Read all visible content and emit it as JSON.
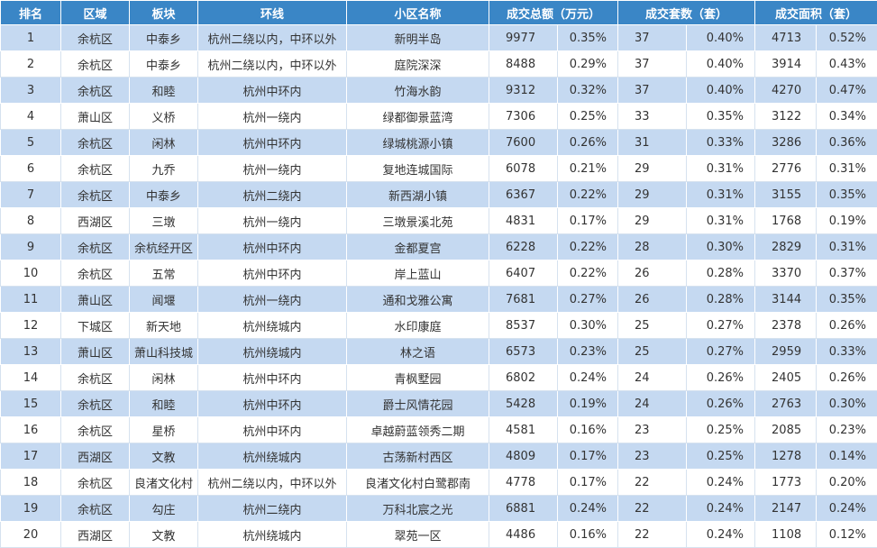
{
  "header": {
    "rank": "排名",
    "district": "区域",
    "block": "板块",
    "ring": "环线",
    "community": "小区名称",
    "amount": "成交总额（万元）",
    "sets": "成交套数（套）",
    "area": "成交面积（套）"
  },
  "rows": [
    {
      "rank": "1",
      "district": "余杭区",
      "block": "中泰乡",
      "ring": "杭州二绕以内，中环以外",
      "community": "新明半岛",
      "amount": "9977",
      "amount_pct": "0.35%",
      "sets": "37",
      "sets_pct": "0.40%",
      "area": "4713",
      "area_pct": "0.52%"
    },
    {
      "rank": "2",
      "district": "余杭区",
      "block": "中泰乡",
      "ring": "杭州二绕以内，中环以外",
      "community": "庭院深深",
      "amount": "8488",
      "amount_pct": "0.29%",
      "sets": "37",
      "sets_pct": "0.40%",
      "area": "3914",
      "area_pct": "0.43%"
    },
    {
      "rank": "3",
      "district": "余杭区",
      "block": "和睦",
      "ring": "杭州中环内",
      "community": "竹海水韵",
      "amount": "9312",
      "amount_pct": "0.32%",
      "sets": "37",
      "sets_pct": "0.40%",
      "area": "4270",
      "area_pct": "0.47%"
    },
    {
      "rank": "4",
      "district": "萧山区",
      "block": "义桥",
      "ring": "杭州一绕内",
      "community": "绿都御景蓝湾",
      "amount": "7306",
      "amount_pct": "0.25%",
      "sets": "33",
      "sets_pct": "0.35%",
      "area": "3122",
      "area_pct": "0.34%"
    },
    {
      "rank": "5",
      "district": "余杭区",
      "block": "闲林",
      "ring": "杭州中环内",
      "community": "绿城桃源小镇",
      "amount": "7600",
      "amount_pct": "0.26%",
      "sets": "31",
      "sets_pct": "0.33%",
      "area": "3286",
      "area_pct": "0.36%"
    },
    {
      "rank": "6",
      "district": "余杭区",
      "block": "九乔",
      "ring": "杭州一绕内",
      "community": "复地连城国际",
      "amount": "6078",
      "amount_pct": "0.21%",
      "sets": "29",
      "sets_pct": "0.31%",
      "area": "2776",
      "area_pct": "0.31%"
    },
    {
      "rank": "7",
      "district": "余杭区",
      "block": "中泰乡",
      "ring": "杭州二绕内",
      "community": "新西湖小镇",
      "amount": "6367",
      "amount_pct": "0.22%",
      "sets": "29",
      "sets_pct": "0.31%",
      "area": "3155",
      "area_pct": "0.35%"
    },
    {
      "rank": "8",
      "district": "西湖区",
      "block": "三墩",
      "ring": "杭州一绕内",
      "community": "三墩景溪北苑",
      "amount": "4831",
      "amount_pct": "0.17%",
      "sets": "29",
      "sets_pct": "0.31%",
      "area": "1768",
      "area_pct": "0.19%"
    },
    {
      "rank": "9",
      "district": "余杭区",
      "block": "余杭经开区",
      "ring": "杭州中环内",
      "community": "金都夏宫",
      "amount": "6228",
      "amount_pct": "0.22%",
      "sets": "28",
      "sets_pct": "0.30%",
      "area": "2829",
      "area_pct": "0.31%"
    },
    {
      "rank": "10",
      "district": "余杭区",
      "block": "五常",
      "ring": "杭州中环内",
      "community": "岸上蓝山",
      "amount": "6407",
      "amount_pct": "0.22%",
      "sets": "26",
      "sets_pct": "0.28%",
      "area": "3370",
      "area_pct": "0.37%"
    },
    {
      "rank": "11",
      "district": "萧山区",
      "block": "闻堰",
      "ring": "杭州一绕内",
      "community": "通和戈雅公寓",
      "amount": "7681",
      "amount_pct": "0.27%",
      "sets": "26",
      "sets_pct": "0.28%",
      "area": "3144",
      "area_pct": "0.35%"
    },
    {
      "rank": "12",
      "district": "下城区",
      "block": "新天地",
      "ring": "杭州绕城内",
      "community": "水印康庭",
      "amount": "8537",
      "amount_pct": "0.30%",
      "sets": "25",
      "sets_pct": "0.27%",
      "area": "2378",
      "area_pct": "0.26%"
    },
    {
      "rank": "13",
      "district": "萧山区",
      "block": "萧山科技城",
      "ring": "杭州绕城内",
      "community": "林之语",
      "amount": "6573",
      "amount_pct": "0.23%",
      "sets": "25",
      "sets_pct": "0.27%",
      "area": "2959",
      "area_pct": "0.33%"
    },
    {
      "rank": "14",
      "district": "余杭区",
      "block": "闲林",
      "ring": "杭州中环内",
      "community": "青枫墅园",
      "amount": "6802",
      "amount_pct": "0.24%",
      "sets": "24",
      "sets_pct": "0.26%",
      "area": "2405",
      "area_pct": "0.26%"
    },
    {
      "rank": "15",
      "district": "余杭区",
      "block": "和睦",
      "ring": "杭州中环内",
      "community": "爵士风情花园",
      "amount": "5428",
      "amount_pct": "0.19%",
      "sets": "24",
      "sets_pct": "0.26%",
      "area": "2763",
      "area_pct": "0.30%"
    },
    {
      "rank": "16",
      "district": "余杭区",
      "block": "星桥",
      "ring": "杭州中环内",
      "community": "卓越蔚蓝领秀二期",
      "amount": "4581",
      "amount_pct": "0.16%",
      "sets": "23",
      "sets_pct": "0.25%",
      "area": "2085",
      "area_pct": "0.23%"
    },
    {
      "rank": "17",
      "district": "西湖区",
      "block": "文教",
      "ring": "杭州绕城内",
      "community": "古荡新村西区",
      "amount": "4809",
      "amount_pct": "0.17%",
      "sets": "23",
      "sets_pct": "0.25%",
      "area": "1278",
      "area_pct": "0.14%"
    },
    {
      "rank": "18",
      "district": "余杭区",
      "block": "良渚文化村",
      "ring": "杭州二绕以内，中环以外",
      "community": "良渚文化村白鹭郡南",
      "amount": "4778",
      "amount_pct": "0.17%",
      "sets": "22",
      "sets_pct": "0.24%",
      "area": "1773",
      "area_pct": "0.20%"
    },
    {
      "rank": "19",
      "district": "余杭区",
      "block": "勾庄",
      "ring": "杭州二绕内",
      "community": "万科北宸之光",
      "amount": "6881",
      "amount_pct": "0.24%",
      "sets": "22",
      "sets_pct": "0.24%",
      "area": "2147",
      "area_pct": "0.24%"
    },
    {
      "rank": "20",
      "district": "西湖区",
      "block": "文教",
      "ring": "杭州绕城内",
      "community": "翠苑一区",
      "amount": "4486",
      "amount_pct": "0.16%",
      "sets": "22",
      "sets_pct": "0.24%",
      "area": "1108",
      "area_pct": "0.12%"
    }
  ]
}
